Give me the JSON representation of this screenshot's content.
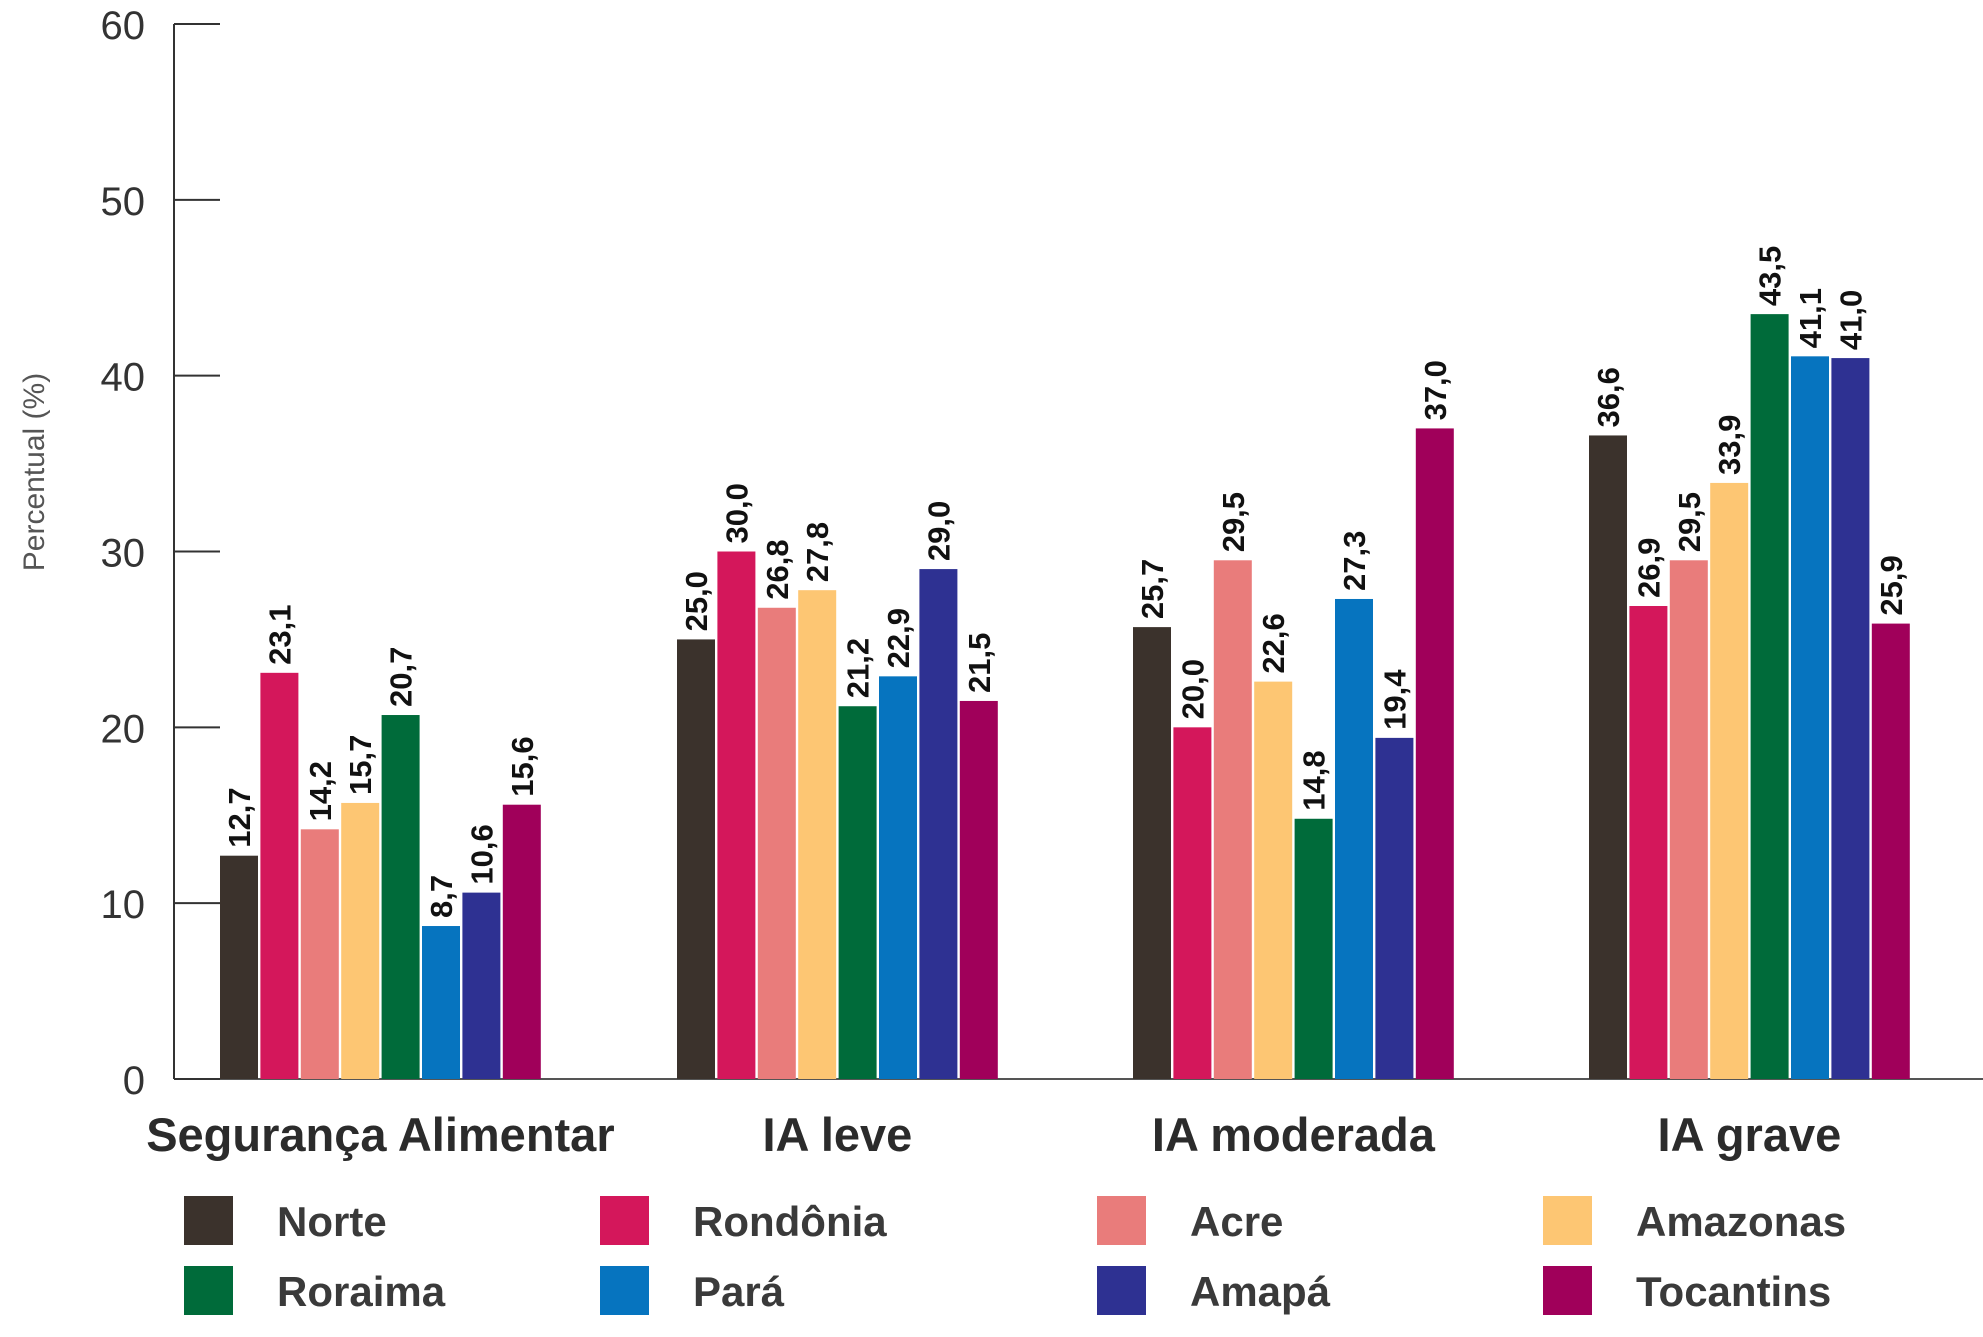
{
  "chart_data": {
    "type": "bar",
    "ylabel": "Percentual (%)",
    "xlabel": "",
    "ylim": [
      0,
      60
    ],
    "yticks": [
      "0",
      "10",
      "20",
      "30",
      "40",
      "50",
      "60"
    ],
    "grid": false,
    "legend_position": "bottom",
    "categories": [
      "Segurança Alimentar",
      "IA leve",
      "IA moderada",
      "IA grave"
    ],
    "series": [
      {
        "name": "Norte",
        "color": "#3b322c",
        "values": [
          12.7,
          25.0,
          25.7,
          36.6
        ],
        "labels": [
          "12,7",
          "25,0",
          "25,7",
          "36,6"
        ]
      },
      {
        "name": "Rondônia",
        "color": "#d4175b",
        "values": [
          23.1,
          30.0,
          20.0,
          26.9
        ],
        "labels": [
          "23,1",
          "30,0",
          "20,0",
          "26,9"
        ]
      },
      {
        "name": "Acre",
        "color": "#e97c7b",
        "values": [
          14.2,
          26.8,
          29.5,
          29.5
        ],
        "labels": [
          "14,2",
          "26,8",
          "29,5",
          "29,5"
        ]
      },
      {
        "name": "Amazonas",
        "color": "#fdc673",
        "values": [
          15.7,
          27.8,
          22.6,
          33.9
        ],
        "labels": [
          "15,7",
          "27,8",
          "22,6",
          "33,9"
        ]
      },
      {
        "name": "Roraima",
        "color": "#006b3a",
        "values": [
          20.7,
          21.2,
          14.8,
          43.5
        ],
        "labels": [
          "20,7",
          "21,2",
          "14,8",
          "43,5"
        ]
      },
      {
        "name": "Pará",
        "color": "#0674bf",
        "values": [
          8.7,
          22.9,
          27.3,
          41.1
        ],
        "labels": [
          "8,7",
          "22,9",
          "27,3",
          "41,1"
        ]
      },
      {
        "name": "Amapá",
        "color": "#2e3192",
        "values": [
          10.6,
          29.0,
          19.4,
          41.0
        ],
        "labels": [
          "10,6",
          "29,0",
          "19,4",
          "41,0"
        ]
      },
      {
        "name": "Tocantins",
        "color": "#a0005a",
        "values": [
          15.6,
          21.5,
          37.0,
          25.9
        ],
        "labels": [
          "15,6",
          "21,5",
          "37,0",
          "25,9"
        ]
      }
    ]
  }
}
